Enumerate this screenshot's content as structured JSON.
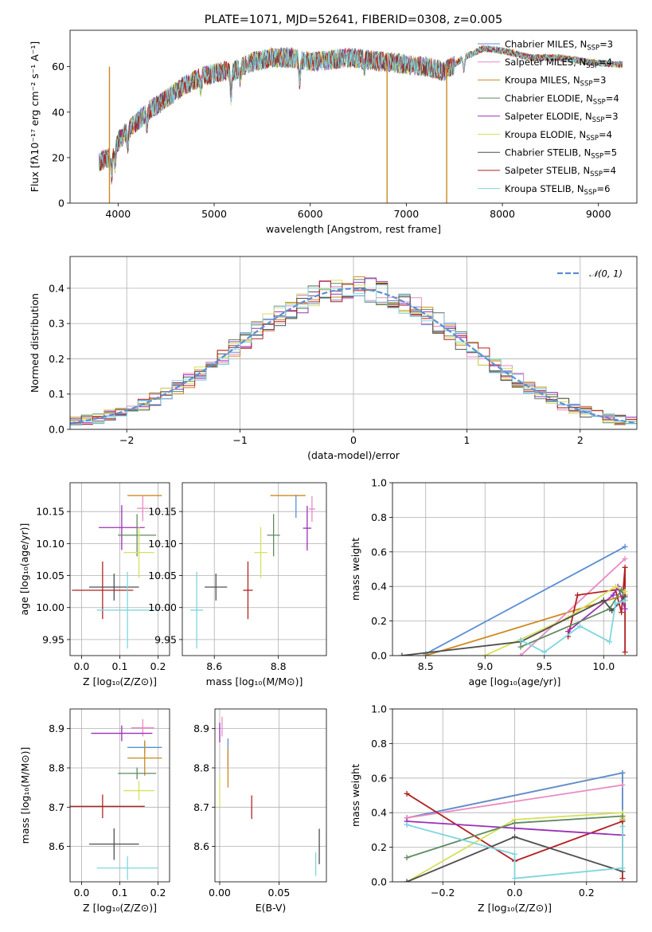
{
  "chart_data": [
    {
      "id": "spectrum",
      "type": "line",
      "title": "PLATE=1071, MJD=52641, FIBERID=0308, z=0.005",
      "xlabel": "wavelength [Angstrom, rest frame]",
      "ylabel": "Flux [fλ10⁻¹⁷ erg cm⁻² s⁻¹ A⁻¹]",
      "xlim": [
        3500,
        9400
      ],
      "ylim": [
        0,
        76
      ],
      "xticks": [
        "4000",
        "5000",
        "6000",
        "7000",
        "8000",
        "9000"
      ],
      "yticks": [
        "0",
        "20",
        "40",
        "60"
      ],
      "grid": false,
      "legend_position": "top-right",
      "series": [
        {
          "name": "Chabrier MILES, N",
          "sub": "SSP",
          "suffix": "=3",
          "color": "#5b8fd6"
        },
        {
          "name": "Salpeter MILES, N",
          "sub": "SSP",
          "suffix": "=4",
          "color": "#e98ac3"
        },
        {
          "name": "Kroupa MILES, N",
          "sub": "SSP",
          "suffix": "=3",
          "color": "#cc8a1f"
        },
        {
          "name": "Chabrier ELODIE, N",
          "sub": "SSP",
          "suffix": "=4",
          "color": "#5f8a5f"
        },
        {
          "name": "Salpeter ELODIE, N",
          "sub": "SSP",
          "suffix": "=3",
          "color": "#9b30b8"
        },
        {
          "name": "Kroupa ELODIE, N",
          "sub": "SSP",
          "suffix": "=4",
          "color": "#d8e05a"
        },
        {
          "name": "Chabrier STELIB, N",
          "sub": "SSP",
          "suffix": "=5",
          "color": "#4f4f4f"
        },
        {
          "name": "Salpeter STELIB, N",
          "sub": "SSP",
          "suffix": "=4",
          "color": "#b22222"
        },
        {
          "name": "Kroupa STELIB, N",
          "sub": "SSP",
          "suffix": "=6",
          "color": "#7fd6df"
        }
      ],
      "continuum": {
        "x": [
          3800,
          3900,
          4000,
          4100,
          4200,
          4300,
          4400,
          4500,
          4600,
          4700,
          4800,
          4900,
          5000,
          5100,
          5200,
          5300,
          5400,
          5500,
          5600,
          5700,
          5800,
          5900,
          6000,
          6200,
          6400,
          6600,
          6800,
          7000,
          7200,
          7400,
          7600,
          7800,
          8000,
          8300,
          8600,
          8900,
          9200
        ],
        "y": [
          18,
          20,
          27,
          32,
          36,
          40,
          43,
          46,
          49,
          52,
          54,
          56,
          57,
          58,
          58,
          60,
          62,
          63,
          64,
          64,
          64,
          63,
          62,
          63,
          64,
          63,
          62,
          61,
          60,
          58,
          64,
          68,
          67,
          64,
          64,
          62,
          61
        ]
      },
      "drop_lines": [
        {
          "x": 3910,
          "color": "#cc8a1f"
        },
        {
          "x": 6800,
          "color": "#cc8a1f"
        },
        {
          "x": 7420,
          "color": "#cc8a1f"
        }
      ]
    },
    {
      "id": "residuals",
      "type": "histogram",
      "xlabel": "(data-model)/error",
      "ylabel": "Normed distribution",
      "xlim": [
        -2.5,
        2.5
      ],
      "ylim": [
        0,
        0.49
      ],
      "xticks": [
        "−2",
        "−1",
        "0",
        "1",
        "2"
      ],
      "yticks": [
        "0.0",
        "0.1",
        "0.2",
        "0.3",
        "0.4"
      ],
      "grid": true,
      "legend_position": "top-right",
      "reference": {
        "name": "𝒩(0, 1)",
        "color": "#5b8fd6",
        "mean": 0,
        "sigma": 1
      }
    },
    {
      "id": "age-vs-Z",
      "type": "errorbar",
      "xlabel": "Z [log₁₀(Z/Z⊙)]",
      "ylabel": "age  [log₁₀(age/yr)]",
      "xlim": [
        -0.03,
        0.23
      ],
      "ylim": [
        9.925,
        10.195
      ],
      "xticks": [
        "0.0",
        "0.1",
        "0.2"
      ],
      "yticks": [
        "9.95",
        "10.00",
        "10.05",
        "10.10",
        "10.15"
      ],
      "grid": true,
      "points": [
        {
          "color": "#cc8a1f",
          "x": 0.165,
          "xerr": 0.045,
          "y": 10.175,
          "yerr": 0.0
        },
        {
          "color": "#e98ac3",
          "x": 0.16,
          "xerr": 0.015,
          "y": 10.155,
          "yerr": 0.02
        },
        {
          "color": "#9b30b8",
          "x": 0.105,
          "xerr": 0.06,
          "y": 10.125,
          "yerr": 0.035
        },
        {
          "color": "#5f8a5f",
          "x": 0.145,
          "xerr": 0.05,
          "y": 10.113,
          "yerr": 0.033
        },
        {
          "color": "#d8e05a",
          "x": 0.15,
          "xerr": 0.04,
          "y": 10.086,
          "yerr": 0.04
        },
        {
          "color": "#4f4f4f",
          "x": 0.085,
          "xerr": 0.065,
          "y": 10.032,
          "yerr": 0.021
        },
        {
          "color": "#b22222",
          "x": 0.055,
          "xerr": 0.08,
          "y": 10.027,
          "yerr": 0.045
        },
        {
          "color": "#7fd6df",
          "x": 0.12,
          "xerr": 0.08,
          "y": 9.996,
          "yerr": 0.06
        }
      ]
    },
    {
      "id": "age-vs-mass",
      "type": "errorbar",
      "xlabel": "mass [log₁₀(M/M⊙)]",
      "ylabel": "",
      "xlim": [
        8.5,
        8.95
      ],
      "ylim": [
        9.925,
        10.195
      ],
      "xticks": [
        "8.6",
        "8.8"
      ],
      "yticks": [
        "9.95",
        "10.00",
        "10.05",
        "10.10",
        "10.15"
      ],
      "grid": true,
      "points": [
        {
          "color": "#cc8a1f",
          "x": 8.83,
          "xerr": 0.055,
          "y": 10.175,
          "yerr": 0.0
        },
        {
          "color": "#5b8fd6",
          "x": 8.855,
          "xerr": 0.0,
          "y": 10.158,
          "yerr": 0.018
        },
        {
          "color": "#e98ac3",
          "x": 8.905,
          "xerr": 0.01,
          "y": 10.154,
          "yerr": 0.02
        },
        {
          "color": "#9b30b8",
          "x": 8.89,
          "xerr": 0.013,
          "y": 10.124,
          "yerr": 0.035
        },
        {
          "color": "#5f8a5f",
          "x": 8.785,
          "xerr": 0.02,
          "y": 10.113,
          "yerr": 0.033
        },
        {
          "color": "#d8e05a",
          "x": 8.745,
          "xerr": 0.02,
          "y": 10.086,
          "yerr": 0.04
        },
        {
          "color": "#4f4f4f",
          "x": 8.605,
          "xerr": 0.035,
          "y": 10.032,
          "yerr": 0.021
        },
        {
          "color": "#b22222",
          "x": 8.705,
          "xerr": 0.015,
          "y": 10.027,
          "yerr": 0.045
        },
        {
          "color": "#7fd6df",
          "x": 8.545,
          "xerr": 0.02,
          "y": 9.996,
          "yerr": 0.06
        }
      ]
    },
    {
      "id": "massweight-vs-age",
      "type": "line",
      "xlabel": "age  [log₁₀(age/yr)]",
      "ylabel": "mass weight",
      "xlim": [
        8.22,
        10.28
      ],
      "ylim": [
        0,
        1
      ],
      "xticks": [
        "8.5",
        "9.0",
        "9.5",
        "10.0"
      ],
      "yticks": [
        "0.0",
        "0.2",
        "0.4",
        "0.6",
        "0.8",
        "1.0"
      ],
      "grid": true,
      "series": [
        {
          "color": "#5b8fd6",
          "x": [
            8.5,
            10.18
          ],
          "y": [
            0.01,
            0.63
          ]
        },
        {
          "color": "#cc8a1f",
          "x": [
            8.5,
            10.18
          ],
          "y": [
            0.0,
            0.35
          ]
        },
        {
          "color": "#e98ac3",
          "x": [
            9.3,
            10.18
          ],
          "y": [
            0.0,
            0.56
          ]
        },
        {
          "color": "#b22222",
          "x": [
            9.7,
            9.78,
            10.1,
            10.15,
            10.18,
            10.18
          ],
          "y": [
            0.11,
            0.35,
            0.38,
            0.25,
            0.51,
            0.02
          ]
        },
        {
          "color": "#9b30b8",
          "x": [
            9.7,
            10.08,
            10.12,
            10.18
          ],
          "y": [
            0.14,
            0.35,
            0.4,
            0.27
          ]
        },
        {
          "color": "#d8e05a",
          "x": [
            9.0,
            9.7,
            10.1,
            10.18
          ],
          "y": [
            0.0,
            0.22,
            0.4,
            0.37
          ]
        },
        {
          "color": "#5f8a5f",
          "x": [
            9.3,
            10.05,
            10.15,
            10.18
          ],
          "y": [
            0.05,
            0.27,
            0.38,
            0.32
          ]
        },
        {
          "color": "#4f4f4f",
          "x": [
            8.3,
            9.3,
            10.0,
            10.07,
            10.18
          ],
          "y": [
            0.0,
            0.08,
            0.32,
            0.26,
            0.34
          ]
        },
        {
          "color": "#7fd6df",
          "x": [
            9.3,
            9.5,
            9.8,
            10.05,
            10.1,
            10.18
          ],
          "y": [
            0.09,
            0.02,
            0.17,
            0.08,
            0.3,
            0.32
          ]
        }
      ]
    },
    {
      "id": "mass-vs-Z",
      "type": "errorbar",
      "xlabel": "Z [log₁₀(Z/Z⊙)]",
      "ylabel": "mass [log₁₀(M/M⊙)]",
      "xlim": [
        -0.03,
        0.23
      ],
      "ylim": [
        8.51,
        8.95
      ],
      "xticks": [
        "0.0",
        "0.1",
        "0.2"
      ],
      "yticks": [
        "8.6",
        "8.7",
        "8.8",
        "8.9"
      ],
      "grid": true,
      "points": [
        {
          "color": "#e98ac3",
          "x": 0.16,
          "xerr": 0.03,
          "y": 8.902,
          "yerr": 0.022
        },
        {
          "color": "#9b30b8",
          "x": 0.105,
          "xerr": 0.08,
          "y": 8.888,
          "yerr": 0.02
        },
        {
          "color": "#5b8fd6",
          "x": 0.165,
          "xerr": 0.045,
          "y": 8.852,
          "yerr": 0.015
        },
        {
          "color": "#cc8a1f",
          "x": 0.165,
          "xerr": 0.045,
          "y": 8.825,
          "yerr": 0.045
        },
        {
          "color": "#5f8a5f",
          "x": 0.145,
          "xerr": 0.05,
          "y": 8.786,
          "yerr": 0.015
        },
        {
          "color": "#d8e05a",
          "x": 0.15,
          "xerr": 0.04,
          "y": 8.742,
          "yerr": 0.025
        },
        {
          "color": "#b22222",
          "x": 0.055,
          "xerr": 0.11,
          "y": 8.702,
          "yerr": 0.03
        },
        {
          "color": "#4f4f4f",
          "x": 0.085,
          "xerr": 0.065,
          "y": 8.606,
          "yerr": 0.04
        },
        {
          "color": "#7fd6df",
          "x": 0.12,
          "xerr": 0.08,
          "y": 8.545,
          "yerr": 0.03
        }
      ]
    },
    {
      "id": "mass-vs-EBV",
      "type": "errorbar",
      "xlabel": "E(B-V)",
      "ylabel": "",
      "xlim": [
        -0.004,
        0.09
      ],
      "ylim": [
        8.51,
        8.95
      ],
      "xticks": [
        "0.00",
        "0.05"
      ],
      "yticks": [
        "8.6",
        "8.7",
        "8.8",
        "8.9"
      ],
      "grid": true,
      "points": [
        {
          "color": "#e98ac3",
          "x": 0.002,
          "xerr": 0,
          "y": 8.905,
          "yerr": 0.025
        },
        {
          "color": "#9b30b8",
          "x": 0.0,
          "xerr": 0,
          "y": 8.89,
          "yerr": 0.025
        },
        {
          "color": "#5b8fd6",
          "x": 0.007,
          "xerr": 0,
          "y": 8.84,
          "yerr": 0.035
        },
        {
          "color": "#cc8a1f",
          "x": 0.007,
          "xerr": 0,
          "y": 8.8,
          "yerr": 0.05
        },
        {
          "color": "#d8e05a",
          "x": 0.0,
          "xerr": 0,
          "y": 8.74,
          "yerr": 0.04
        },
        {
          "color": "#b22222",
          "x": 0.027,
          "xerr": 0,
          "y": 8.7,
          "yerr": 0.03
        },
        {
          "color": "#4f4f4f",
          "x": 0.084,
          "xerr": 0,
          "y": 8.6,
          "yerr": 0.045
        },
        {
          "color": "#7fd6df",
          "x": 0.081,
          "xerr": 0,
          "y": 8.555,
          "yerr": 0.03
        }
      ]
    },
    {
      "id": "massweight-vs-Z",
      "type": "line",
      "xlabel": "Z [log₁₀(Z/Z⊙)]",
      "ylabel": "mass weight",
      "xlim": [
        -0.34,
        0.34
      ],
      "ylim": [
        0,
        1
      ],
      "xticks": [
        "−0.2",
        "0.0",
        "0.2"
      ],
      "yticks": [
        "0.0",
        "0.2",
        "0.4",
        "0.6",
        "0.8",
        "1.0"
      ],
      "grid": true,
      "series": [
        {
          "color": "#cc8a1f",
          "x": [
            -0.3,
            0.3,
            0.3
          ],
          "y": [
            0.37,
            0.63,
            0.36
          ]
        },
        {
          "color": "#5b8fd6",
          "x": [
            -0.3,
            0.3,
            0.3
          ],
          "y": [
            0.37,
            0.63,
            0.37
          ]
        },
        {
          "color": "#e98ac3",
          "x": [
            -0.3,
            0.3
          ],
          "y": [
            0.37,
            0.56
          ]
        },
        {
          "color": "#b22222",
          "x": [
            -0.3,
            0.0,
            0.3,
            0.3
          ],
          "y": [
            0.51,
            0.12,
            0.35,
            0.02
          ]
        },
        {
          "color": "#9b30b8",
          "x": [
            -0.3,
            0.0,
            0.3
          ],
          "y": [
            0.35,
            0.31,
            0.27
          ]
        },
        {
          "color": "#d8e05a",
          "x": [
            -0.3,
            0.0,
            0.3,
            0.3
          ],
          "y": [
            0.0,
            0.36,
            0.4,
            0.37
          ]
        },
        {
          "color": "#5f8a5f",
          "x": [
            -0.3,
            0.0,
            0.3
          ],
          "y": [
            0.14,
            0.34,
            0.38
          ]
        },
        {
          "color": "#4f4f4f",
          "x": [
            -0.3,
            0.0,
            0.3
          ],
          "y": [
            0.0,
            0.26,
            0.06
          ]
        },
        {
          "color": "#7fd6df",
          "x": [
            -0.3,
            -0.3,
            0.0,
            0.0,
            0.3,
            0.3
          ],
          "y": [
            0.33,
            0.33,
            0.16,
            0.02,
            0.08,
            0.32
          ]
        }
      ]
    }
  ]
}
